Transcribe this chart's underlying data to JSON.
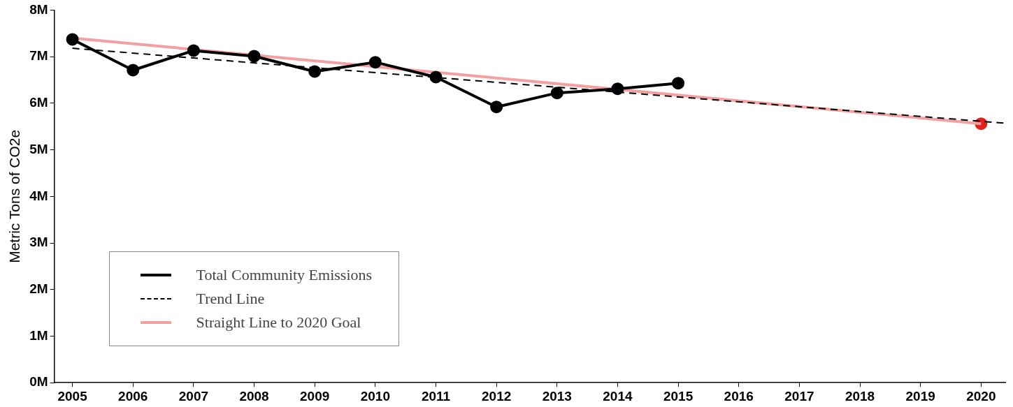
{
  "chart_data": {
    "type": "line",
    "ylabel": "Metric Tons of CO2e",
    "xlim": [
      2004.7,
      2020.4
    ],
    "xticks": [
      2005,
      2006,
      2007,
      2008,
      2009,
      2010,
      2011,
      2012,
      2013,
      2014,
      2015,
      2016,
      2017,
      2018,
      2019,
      2020
    ],
    "ylim": [
      0,
      8000000
    ],
    "yticks": [
      {
        "value": 0,
        "label": "0M"
      },
      {
        "value": 1000000,
        "label": "1M"
      },
      {
        "value": 2000000,
        "label": "2M"
      },
      {
        "value": 3000000,
        "label": "3M"
      },
      {
        "value": 4000000,
        "label": "4M"
      },
      {
        "value": 5000000,
        "label": "5M"
      },
      {
        "value": 6000000,
        "label": "6M"
      },
      {
        "value": 7000000,
        "label": "7M"
      },
      {
        "value": 8000000,
        "label": "8M"
      }
    ],
    "grid": false,
    "legend": "bottom left",
    "series": [
      {
        "name": "Total Community Emissions",
        "type": "line",
        "color": "#000000",
        "marker": "circle",
        "line_style": "solid",
        "x": [
          2005,
          2006,
          2007,
          2008,
          2009,
          2010,
          2011,
          2012,
          2013,
          2014,
          2015
        ],
        "values": [
          7370000,
          6710000,
          7130000,
          7010000,
          6680000,
          6880000,
          6560000,
          5920000,
          6220000,
          6310000,
          6430000
        ]
      },
      {
        "name": "Trend Line",
        "type": "line",
        "color": "#000000",
        "marker": "none",
        "line_style": "dashed",
        "x": [
          2005,
          2020.4
        ],
        "values": [
          7180000,
          5570000
        ]
      },
      {
        "name": "Straight Line to 2020 Goal",
        "type": "line",
        "color": "#f4a0a0",
        "marker": "none",
        "line_style": "solid",
        "x": [
          2005,
          2020
        ],
        "values": [
          7400000,
          5560000
        ]
      },
      {
        "type": "scatter",
        "color": "#e8201a",
        "marker": "circle",
        "x": [
          2020
        ],
        "values": [
          5560000
        ]
      }
    ]
  }
}
